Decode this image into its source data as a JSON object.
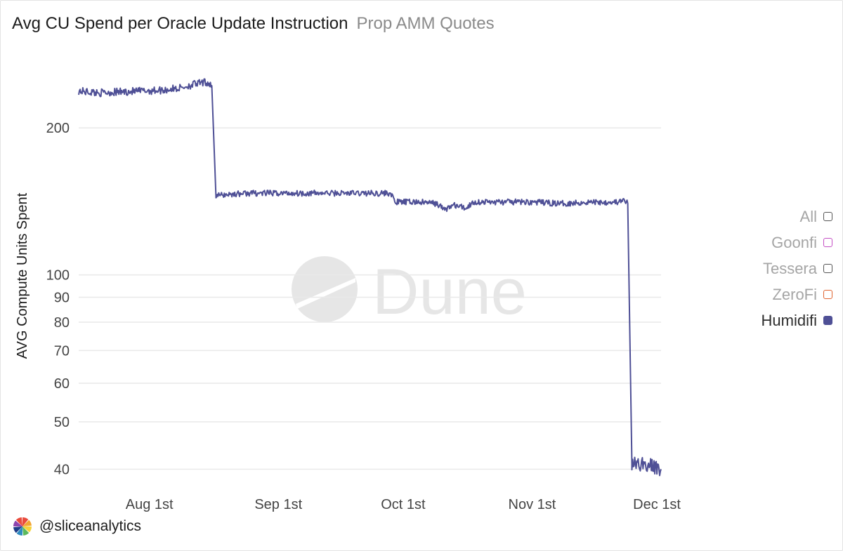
{
  "header": {
    "title": "Avg CU Spend per Oracle Update Instruction",
    "subtitle": "Prop AMM Quotes"
  },
  "watermark": {
    "text": "Dune"
  },
  "footer": {
    "handle": "@sliceanalytics",
    "logo_icon": "slice-analytics-pinwheel-logo"
  },
  "legend": {
    "items": [
      {
        "label": "All",
        "color": "#555555",
        "active": false
      },
      {
        "label": "Goonfi",
        "color": "#c44fc4",
        "active": false
      },
      {
        "label": "Tessera",
        "color": "#555555",
        "active": false
      },
      {
        "label": "ZeroFi",
        "color": "#e0632f",
        "active": false
      },
      {
        "label": "Humidifi",
        "color": "#4f5096",
        "active": true
      }
    ]
  },
  "chart_data": {
    "type": "line",
    "ylabel": "AVG Compute Units Spent",
    "y_scale": "log",
    "ylim": [
      37,
      275
    ],
    "xlim": [
      "2025-07-15",
      "2025-12-02"
    ],
    "y_ticks": [
      40,
      50,
      60,
      70,
      80,
      90,
      100,
      200
    ],
    "x_ticks": [
      {
        "label": "Aug 1st",
        "date": "2025-08-01"
      },
      {
        "label": "Sep 1st",
        "date": "2025-09-01"
      },
      {
        "label": "Oct 1st",
        "date": "2025-10-01"
      },
      {
        "label": "Nov 1st",
        "date": "2025-11-01"
      },
      {
        "label": "Dec 1st",
        "date": "2025-12-01"
      }
    ],
    "grid": true,
    "legend_position": "right",
    "series": [
      {
        "name": "Humidifi",
        "color": "#4f5096",
        "points": [
          [
            "2025-07-15",
            238
          ],
          [
            "2025-07-20",
            236
          ],
          [
            "2025-07-25",
            237
          ],
          [
            "2025-07-30",
            238
          ],
          [
            "2025-08-04",
            239
          ],
          [
            "2025-08-08",
            241
          ],
          [
            "2025-08-12",
            246
          ],
          [
            "2025-08-15",
            248
          ],
          [
            "2025-08-16",
            244
          ],
          [
            "2025-08-17",
            145
          ],
          [
            "2025-08-19",
            146
          ],
          [
            "2025-08-25",
            147
          ],
          [
            "2025-09-01",
            147
          ],
          [
            "2025-09-10",
            147
          ],
          [
            "2025-09-20",
            147
          ],
          [
            "2025-09-28",
            147
          ],
          [
            "2025-09-29",
            141
          ],
          [
            "2025-10-05",
            141
          ],
          [
            "2025-10-09",
            140
          ],
          [
            "2025-10-11",
            136
          ],
          [
            "2025-10-13",
            139
          ],
          [
            "2025-10-16",
            137
          ],
          [
            "2025-10-18",
            141
          ],
          [
            "2025-10-25",
            141
          ],
          [
            "2025-11-01",
            141
          ],
          [
            "2025-11-08",
            140
          ],
          [
            "2025-11-15",
            141
          ],
          [
            "2025-11-22",
            141
          ],
          [
            "2025-11-23",
            142
          ],
          [
            "2025-11-24",
            140
          ],
          [
            "2025-11-25",
            41
          ],
          [
            "2025-11-28",
            41
          ],
          [
            "2025-12-02",
            40
          ]
        ]
      }
    ]
  }
}
